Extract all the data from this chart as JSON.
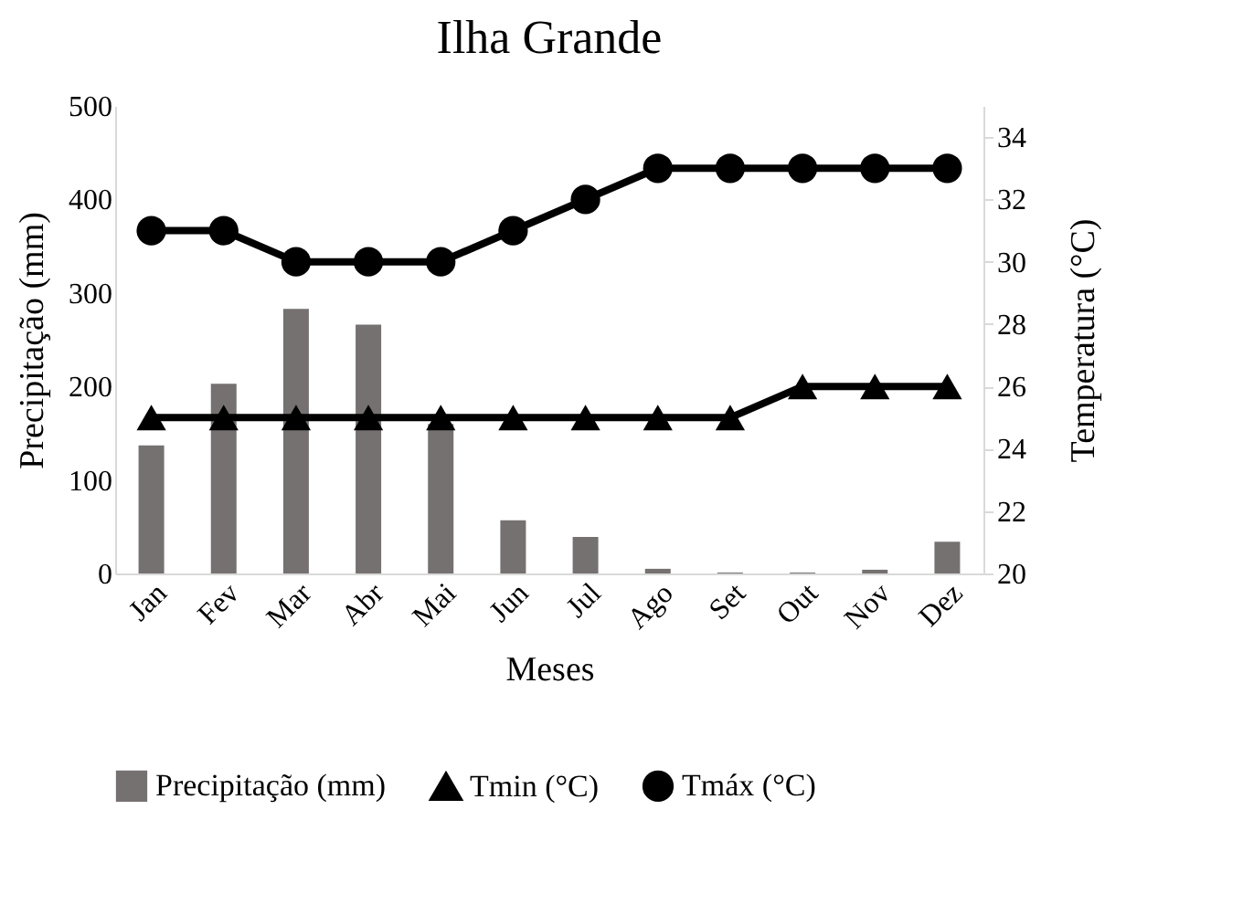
{
  "chart_data": {
    "type": "bar",
    "title": "Ilha Grande",
    "xlabel": "Meses",
    "ylabel": "Precipitação (mm)",
    "y2label": "Temperatura (°C)",
    "categories": [
      "Jan",
      "Fev",
      "Mar",
      "Abr",
      "Mai",
      "Jun",
      "Jul",
      "Ago",
      "Set",
      "Out",
      "Nov",
      "Dez"
    ],
    "series": [
      {
        "name": "Precipitação (mm)",
        "color": "#767171",
        "values": [
          137,
          203,
          283,
          266,
          160,
          57,
          39,
          5,
          1,
          1,
          4,
          34
        ]
      },
      {
        "name": "Tmin (°C)",
        "type": "line",
        "axis": "y2",
        "marker": "triangle",
        "color": "#000000",
        "values": [
          25,
          25,
          25,
          25,
          25,
          25,
          25,
          25,
          25,
          26,
          26,
          26
        ]
      },
      {
        "name": "Tmáx (°C)",
        "type": "line",
        "axis": "y2",
        "marker": "circle",
        "color": "#000000",
        "values": [
          31,
          31,
          30,
          30,
          30,
          31,
          32,
          33,
          33,
          33,
          33,
          33
        ]
      }
    ],
    "ylim": [
      0,
      500
    ],
    "yticks": [
      0,
      100,
      200,
      300,
      400,
      500
    ],
    "y2lim": [
      20,
      35
    ],
    "y2ticks": [
      20,
      22,
      24,
      26,
      28,
      30,
      32,
      34
    ],
    "grid": false,
    "legend": "bottom"
  }
}
